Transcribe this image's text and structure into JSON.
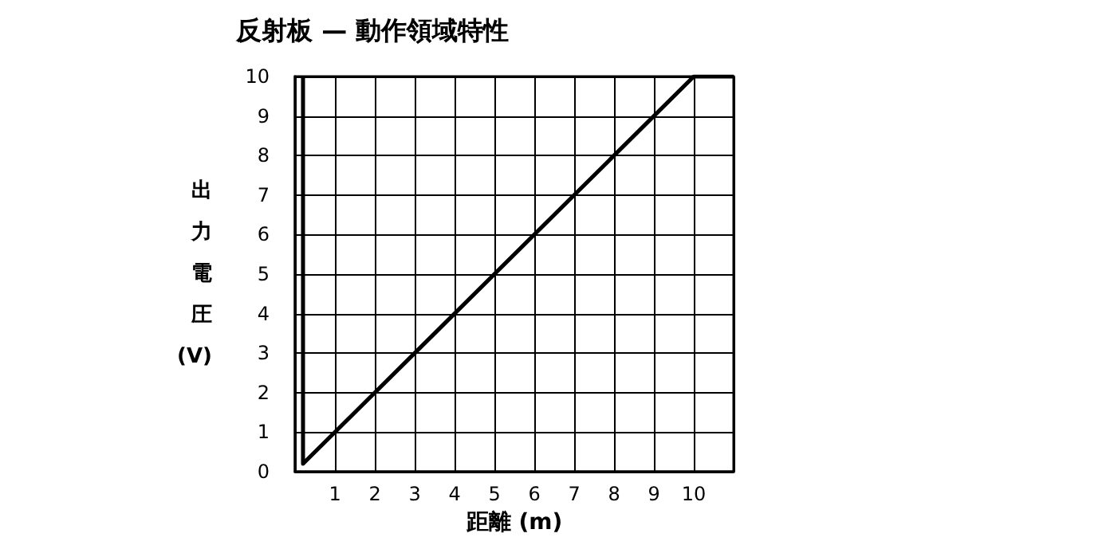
{
  "chart_data": {
    "type": "line",
    "title": "反射板 — 動作領域特性",
    "xlabel": "距離 (m)",
    "ylabel": "出力電圧 (V)",
    "x": [
      0.2,
      0.2,
      10,
      11
    ],
    "series": [
      {
        "color": "#000000",
        "values": [
          10,
          0.2,
          10,
          10
        ]
      }
    ],
    "xlim": [
      0,
      11
    ],
    "xticks": [
      1,
      2,
      3,
      4,
      5,
      6,
      7,
      8,
      9,
      10
    ],
    "ylim": [
      0,
      10
    ],
    "yticks": [
      0,
      1,
      2,
      3,
      4,
      5,
      6,
      7,
      8,
      9,
      10
    ],
    "grid": true,
    "marker": "none",
    "line_style": "solid"
  }
}
